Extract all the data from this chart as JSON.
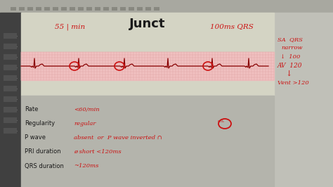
{
  "title": "Junct",
  "top_left_text": "55 | min",
  "top_right_text": "100ms QRS",
  "bg_toolbar": "#b0b0a8",
  "bg_main_top": "#d8d8cc",
  "bg_ecg": "#f0c8c8",
  "bg_main_bottom": "#b8b8b0",
  "bg_right": "#c0c0b8",
  "sidebar_bg": "#404040",
  "sidebar_icon_color": "#888888",
  "main_text_color": "#cc1111",
  "black_text_color": "#1a1a1a",
  "ecg_line_color": "#880000",
  "ecg_grid_color": "#e0a0a0",
  "rate_label": "Rate",
  "rate_value": "<60/min",
  "regularity_label": "Regularity",
  "regularity_value": "regular",
  "pwave_label": "P wave",
  "pwave_value": "absent  or  P wave inverted ∩",
  "pri_label": "PRI duration",
  "pri_value": "ø short <120ms",
  "qrs_label": "QRS duration",
  "qrs_value": "~120ms",
  "right_line1": "SA  QRS",
  "right_line2": "narrow",
  "right_line3": "↓  100",
  "right_line4": "AV  120",
  "right_line5": "↓",
  "right_line6": "Vent >120",
  "fig_width": 4.74,
  "fig_height": 2.66,
  "dpi": 100
}
